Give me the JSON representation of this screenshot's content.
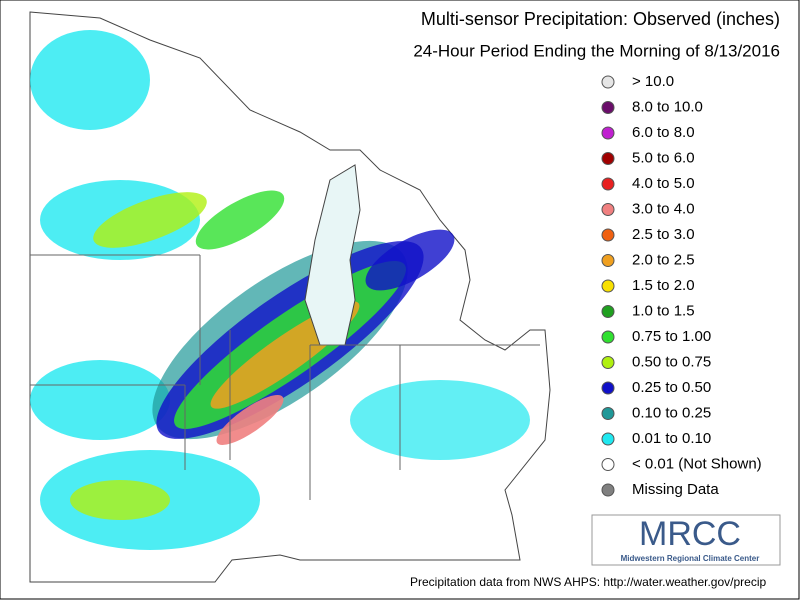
{
  "title": "Multi-sensor Precipitation:  Observed (inches)",
  "subtitle": "24-Hour Period Ending the Morning of 8/13/2016",
  "legend": [
    {
      "label": "> 10.0",
      "color": "#e6e6e6"
    },
    {
      "label": "8.0 to 10.0",
      "color": "#6a0d6a"
    },
    {
      "label": "6.0 to 8.0",
      "color": "#c020d0"
    },
    {
      "label": "5.0 to 6.0",
      "color": "#a00000"
    },
    {
      "label": "4.0 to 5.0",
      "color": "#e82020"
    },
    {
      "label": "3.0 to 4.0",
      "color": "#f08080"
    },
    {
      "label": "2.5 to 3.0",
      "color": "#f06010"
    },
    {
      "label": "2.0 to 2.5",
      "color": "#f0a020"
    },
    {
      "label": "1.5 to 2.0",
      "color": "#f8e000"
    },
    {
      "label": "1.0 to 1.5",
      "color": "#20a020"
    },
    {
      "label": "0.75 to 1.00",
      "color": "#30e030"
    },
    {
      "label": "0.50 to 0.75",
      "color": "#b0f010"
    },
    {
      "label": "0.25 to 0.50",
      "color": "#1010c8"
    },
    {
      "label": "0.10 to 0.25",
      "color": "#209898"
    },
    {
      "label": "0.01 to 0.10",
      "color": "#20e8f0"
    },
    {
      "label": "< 0.01 (Not Shown)",
      "color": "#ffffff"
    },
    {
      "label": "Missing Data",
      "color": "#808080"
    }
  ],
  "logo": {
    "name": "MRCC",
    "subtitle": "Midwestern Regional Climate Center"
  },
  "footer": "Precipitation data from NWS AHPS: http://water.weather.gov/precip"
}
